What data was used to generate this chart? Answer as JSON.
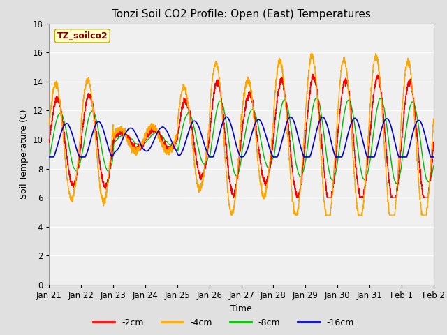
{
  "title": "Tonzi Soil CO2 Profile: Open (East) Temperatures",
  "xlabel": "Time",
  "ylabel": "Soil Temperature (C)",
  "ylim": [
    0,
    18
  ],
  "xlim_days": [
    0,
    12
  ],
  "xtick_labels": [
    "Jan 21",
    "Jan 22",
    "Jan 23",
    "Jan 24",
    "Jan 25",
    "Jan 26",
    "Jan 27",
    "Jan 28",
    "Jan 29",
    "Jan 30",
    "Jan 31",
    "Feb 1",
    "Feb 2"
  ],
  "xtick_positions": [
    0,
    1,
    2,
    3,
    4,
    5,
    6,
    7,
    8,
    9,
    10,
    11,
    12
  ],
  "colors": {
    "2cm": "#ff0000",
    "4cm": "#ffa500",
    "8cm": "#00bb00",
    "16cm": "#0000cc"
  },
  "legend_labels": [
    "-2cm",
    "-4cm",
    "-8cm",
    "-16cm"
  ],
  "legend_colors": [
    "#ff0000",
    "#ffa500",
    "#00bb00",
    "#0000cc"
  ],
  "bg_color": "#e0e0e0",
  "plot_bg_color": "#f0f0f0",
  "grid_color": "#ffffff",
  "annotation_text": "TZ_soilco2",
  "annotation_bg": "#ffffcc",
  "annotation_fg": "#880000",
  "title_fontsize": 11,
  "label_fontsize": 9,
  "tick_fontsize": 8.5
}
